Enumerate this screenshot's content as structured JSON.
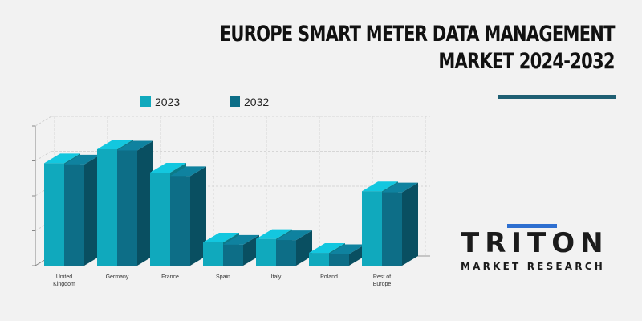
{
  "header": {
    "title_line1": "EUROPE SMART METER DATA MANAGEMENT",
    "title_line2": "MARKET 2024-2032"
  },
  "logo": {
    "name": "TRITON",
    "tagline": "MARKET RESEARCH",
    "accent_color": "#2e6fd0"
  },
  "chart_data": {
    "type": "bar",
    "categories": [
      "United Kingdom",
      "Germany",
      "France",
      "Spain",
      "Italy",
      "Poland",
      "Rest of Europe"
    ],
    "category_labels": [
      [
        "United",
        "Kingdom"
      ],
      [
        "Germany"
      ],
      [
        "France"
      ],
      [
        "Spain"
      ],
      [
        "Italy"
      ],
      [
        "Poland"
      ],
      [
        "Rest of",
        "Europe"
      ]
    ],
    "series": [
      {
        "name": "2023",
        "color": "#10a9bd",
        "values": [
          88,
          100,
          80,
          20,
          23,
          11,
          64
        ]
      },
      {
        "name": "2032",
        "color": "#0d6e87",
        "values": [
          87,
          99,
          77,
          18,
          22,
          10,
          63
        ]
      }
    ],
    "ylim": [
      0,
      120
    ],
    "grid": true,
    "legend_position": "top",
    "style": "3d"
  }
}
